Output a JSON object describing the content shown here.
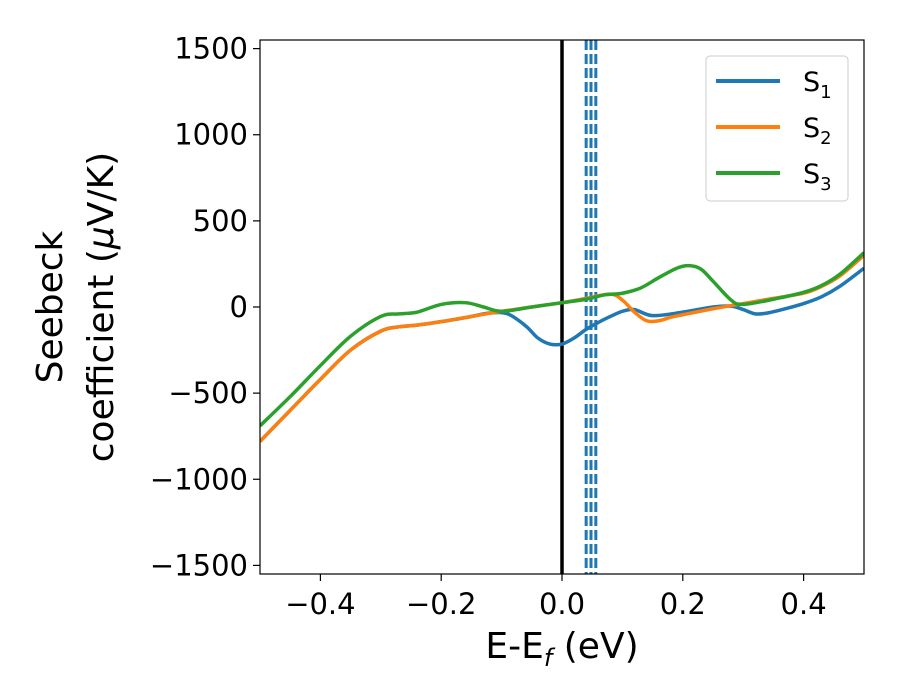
{
  "chart_data": {
    "type": "line",
    "xlabel": "E-E",
    "xlabel_sub": "f",
    "xlabel_unit": " (eV)",
    "ylabel_line1": "Seebeck",
    "ylabel_line2": "coefficient  (",
    "ylabel_mu": "μ",
    "ylabel_unit": "V/K)",
    "xlim": [
      -0.5,
      0.5
    ],
    "ylim": [
      -1550,
      1550
    ],
    "xticks": [
      -0.4,
      -0.2,
      0.0,
      0.2,
      0.4
    ],
    "xtick_labels": [
      "−0.4",
      "−0.2",
      "0.0",
      "0.2",
      "0.4"
    ],
    "yticks": [
      -1500,
      -1000,
      -500,
      0,
      500,
      1000,
      1500
    ],
    "ytick_labels": [
      "−1500",
      "−1000",
      "−500",
      "0",
      "500",
      "1000",
      "1500"
    ],
    "grid": false,
    "legend_position": "top-right",
    "series": [
      {
        "name": "S",
        "subscript": "1",
        "color": "#1f77b4",
        "x": [
          -0.5,
          -0.45,
          -0.4,
          -0.35,
          -0.3,
          -0.27,
          -0.24,
          -0.2,
          -0.15,
          -0.12,
          -0.09,
          -0.06,
          -0.04,
          -0.02,
          0.0,
          0.02,
          0.04,
          0.06,
          0.08,
          0.1,
          0.12,
          0.15,
          0.2,
          0.25,
          0.28,
          0.3,
          0.32,
          0.34,
          0.37,
          0.4,
          0.43,
          0.46,
          0.5
        ],
        "y": [
          -780,
          -600,
          -420,
          -250,
          -140,
          -115,
          -105,
          -85,
          -55,
          -35,
          -40,
          -110,
          -180,
          -215,
          -215,
          -180,
          -130,
          -90,
          -55,
          -25,
          -15,
          -50,
          -30,
          0,
          5,
          -15,
          -40,
          -35,
          -10,
          20,
          60,
          120,
          225
        ]
      },
      {
        "name": "S",
        "subscript": "2",
        "color": "#ff7f0e",
        "x": [
          -0.5,
          -0.45,
          -0.4,
          -0.35,
          -0.3,
          -0.27,
          -0.24,
          -0.2,
          -0.15,
          -0.1,
          -0.05,
          0.0,
          0.04,
          0.08,
          0.1,
          0.12,
          0.14,
          0.16,
          0.18,
          0.2,
          0.25,
          0.3,
          0.35,
          0.4,
          0.43,
          0.46,
          0.5
        ],
        "y": [
          -780,
          -600,
          -420,
          -250,
          -140,
          -115,
          -105,
          -85,
          -55,
          -25,
          0,
          25,
          50,
          75,
          40,
          -30,
          -80,
          -80,
          -60,
          -45,
          -10,
          20,
          50,
          80,
          120,
          180,
          300
        ]
      },
      {
        "name": "S",
        "subscript": "3",
        "color": "#2ca02c",
        "x": [
          -0.5,
          -0.45,
          -0.4,
          -0.35,
          -0.3,
          -0.27,
          -0.24,
          -0.2,
          -0.16,
          -0.13,
          -0.1,
          -0.05,
          0.0,
          0.04,
          0.07,
          0.1,
          0.13,
          0.16,
          0.19,
          0.21,
          0.23,
          0.25,
          0.28,
          0.3,
          0.35,
          0.4,
          0.43,
          0.46,
          0.5
        ],
        "y": [
          -690,
          -520,
          -340,
          -170,
          -55,
          -40,
          -30,
          15,
          25,
          0,
          -25,
          0,
          25,
          45,
          70,
          80,
          110,
          170,
          225,
          240,
          220,
          150,
          40,
          15,
          45,
          85,
          125,
          190,
          315
        ]
      }
    ],
    "vlines": [
      {
        "x": 0.0,
        "color": "#000000",
        "style": "solid"
      },
      {
        "x": 0.04,
        "color": "#1f77b4",
        "style": "dashed"
      },
      {
        "x": 0.048,
        "color": "#1f77b4",
        "style": "dashed"
      },
      {
        "x": 0.056,
        "color": "#1f77b4",
        "style": "dashed"
      }
    ]
  }
}
